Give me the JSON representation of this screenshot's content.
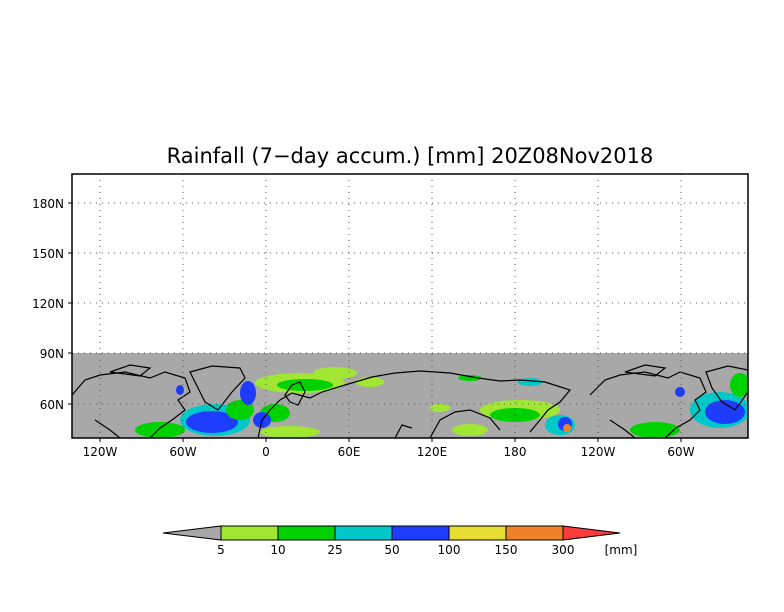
{
  "title": "Rainfall (7−day accum.) [mm] 20Z08Nov2018",
  "map": {
    "y_ticks": [
      "180N",
      "150N",
      "120N",
      "90N",
      "60N"
    ],
    "x_ticks": [
      "120W",
      "60W",
      "0",
      "60E",
      "120E",
      "180",
      "120W",
      "60W"
    ],
    "grid": true,
    "land_color": "#a8a8a8",
    "background_color": "#ffffff"
  },
  "colorbar": {
    "labels": [
      "5",
      "10",
      "25",
      "50",
      "100",
      "150",
      "300"
    ],
    "unit": "[mm]",
    "colors": [
      "#a8a8a8",
      "#a0e632",
      "#00d200",
      "#00c8c8",
      "#1e3cff",
      "#e6dc32",
      "#f08228",
      "#fa3c3c"
    ]
  }
}
